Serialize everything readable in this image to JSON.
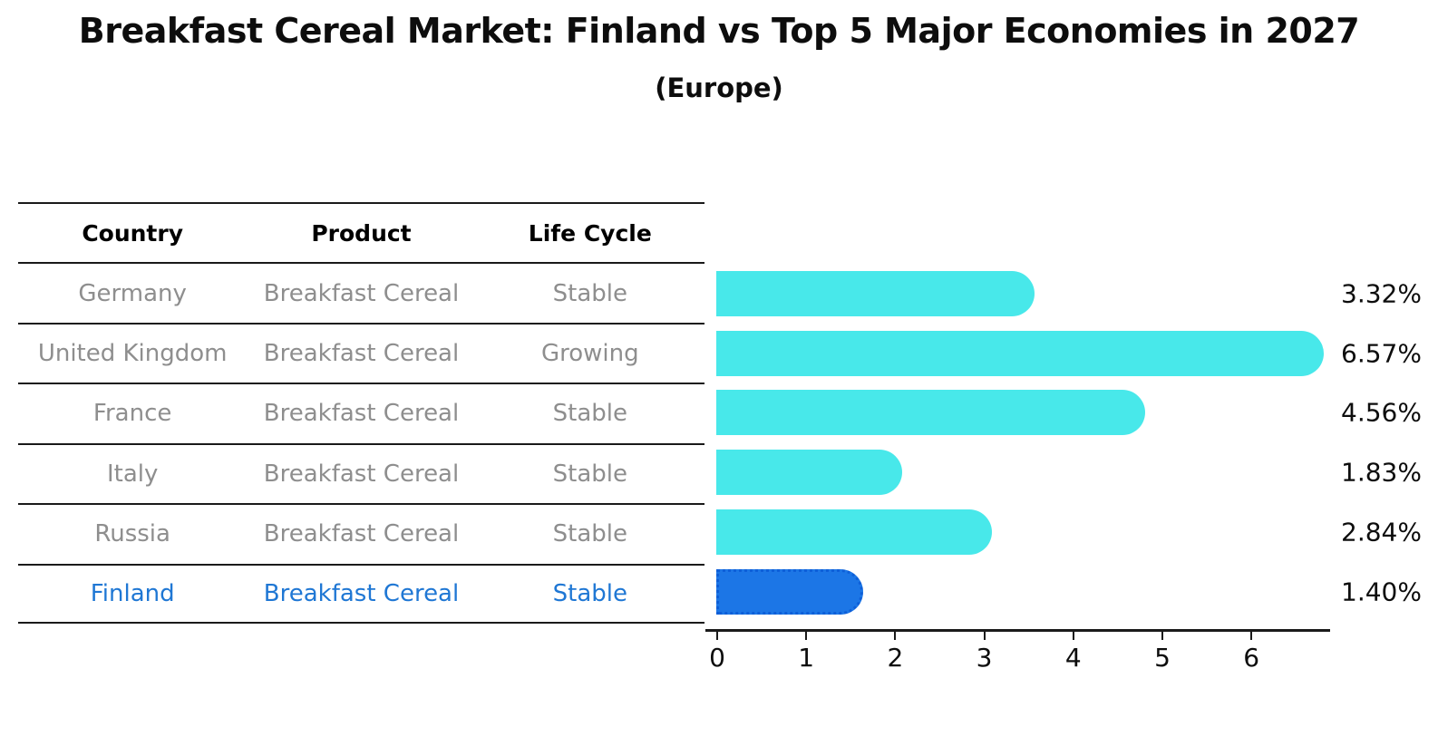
{
  "page": {
    "title": "Breakfast Cereal Market: Finland vs Top 5 Major Economies in 2027",
    "subtitle": "(Europe)"
  },
  "table": {
    "columns": [
      "Country",
      "Product",
      "Life Cycle"
    ],
    "rows": [
      {
        "country": "Germany",
        "product": "Breakfast Cereal",
        "life_cycle": "Stable",
        "highlight": false
      },
      {
        "country": "United Kingdom",
        "product": "Breakfast Cereal",
        "life_cycle": "Growing",
        "highlight": false
      },
      {
        "country": "France",
        "product": "Breakfast Cereal",
        "life_cycle": "Stable",
        "highlight": false
      },
      {
        "country": "Italy",
        "product": "Breakfast Cereal",
        "life_cycle": "Stable",
        "highlight": false
      },
      {
        "country": "Russia",
        "product": "Breakfast Cereal",
        "life_cycle": "Stable",
        "highlight": false
      },
      {
        "country": "Finland",
        "product": "Breakfast Cereal",
        "life_cycle": "Stable",
        "highlight": true
      }
    ]
  },
  "chart_data": {
    "type": "bar",
    "orientation": "horizontal",
    "title": "Breakfast Cereal Market: Finland vs Top 5 Major Economies in 2027",
    "subtitle": "(Europe)",
    "categories": [
      "Germany",
      "United Kingdom",
      "France",
      "Italy",
      "Russia",
      "Finland"
    ],
    "values": [
      3.32,
      6.57,
      4.56,
      1.83,
      2.84,
      1.4
    ],
    "value_labels": [
      "3.32%",
      "6.57%",
      "4.56%",
      "1.83%",
      "2.84%",
      "1.40%"
    ],
    "xticks": [
      "0",
      "1",
      "2",
      "3",
      "4",
      "5",
      "6"
    ],
    "xlim": [
      0,
      6.9
    ],
    "grid": false,
    "legend": "none",
    "bar_color": "#48e8ea",
    "highlight_bar_color": "#1c76e6",
    "highlight_border_color": "#0e5fd8",
    "highlight_index": 5,
    "highlight_text_color": "#1f77d4"
  }
}
